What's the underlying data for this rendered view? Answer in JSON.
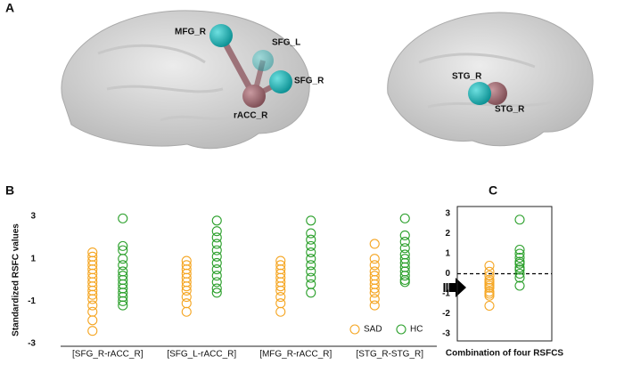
{
  "panels": [
    "A",
    "B",
    "C"
  ],
  "brain_left": {
    "nodes": [
      "MFG_R",
      "SFG_L",
      "SFG_R",
      "rACC_R"
    ]
  },
  "brain_right": {
    "nodes": [
      "STG_R",
      "STG_R"
    ]
  },
  "chart_data": [
    {
      "type": "strip",
      "y_label": "Standardized RSFC values",
      "categories": [
        "[SFG_R-rACC_R]",
        "[SFG_L-rACC_R]",
        "[MFG_R-rACC_R]",
        "[STG_R-STG_R]"
      ],
      "ylim": [
        -3,
        3
      ],
      "yticks": [
        -3,
        -1,
        1,
        3
      ],
      "legend": "lower right",
      "series": [
        {
          "name": "SAD",
          "color": "#f5a623",
          "values": [
            [
              1.3,
              1.1,
              0.9,
              0.7,
              0.5,
              0.3,
              0.1,
              -0.1,
              -0.3,
              -0.5,
              -0.7,
              -0.9,
              -1.2,
              -1.5,
              -1.9,
              -2.4
            ],
            [
              0.9,
              0.7,
              0.5,
              0.3,
              0.1,
              -0.1,
              -0.3,
              -0.5,
              -0.8,
              -1.1,
              -1.5
            ],
            [
              0.9,
              0.7,
              0.5,
              0.3,
              0.1,
              -0.1,
              -0.3,
              -0.5,
              -0.8,
              -1.1,
              -1.5
            ],
            [
              1.7,
              1.0,
              0.7,
              0.4,
              0.2,
              0,
              -0.2,
              -0.4,
              -0.6,
              -0.9,
              -1.2
            ]
          ]
        },
        {
          "name": "HC",
          "color": "#2ca02c",
          "values": [
            [
              2.9,
              1.6,
              1.4,
              1.0,
              0.7,
              0.4,
              0.2,
              0,
              -0.2,
              -0.4,
              -0.6,
              -0.8,
              -1.0,
              -1.2
            ],
            [
              2.8,
              2.3,
              2.0,
              1.7,
              1.4,
              1.1,
              0.8,
              0.5,
              0.2,
              -0.1,
              -0.4,
              -0.6
            ],
            [
              2.8,
              2.2,
              1.9,
              1.6,
              1.3,
              1.0,
              0.7,
              0.4,
              0.1,
              -0.2,
              -0.6
            ],
            [
              2.9,
              2.1,
              1.8,
              1.5,
              1.2,
              1.0,
              0.8,
              0.6,
              0.4,
              0.2,
              0,
              -0.1
            ]
          ]
        }
      ]
    },
    {
      "type": "strip",
      "x_label": "Combination of four RSFCS",
      "ylim": [
        -3,
        3
      ],
      "yticks": [
        -3,
        -2,
        -1,
        0,
        1,
        2,
        3
      ],
      "reference_line": 0,
      "series": [
        {
          "name": "SAD",
          "color": "#f5a623",
          "values": [
            0.4,
            0.1,
            -0.1,
            -0.3,
            -0.4,
            -0.5,
            -0.6,
            -0.7,
            -0.9,
            -1.0,
            -1.1,
            -1.6
          ]
        },
        {
          "name": "HC",
          "color": "#2ca02c",
          "values": [
            2.7,
            1.2,
            1.0,
            0.8,
            0.6,
            0.5,
            0.3,
            0.2,
            0,
            -0.2,
            -0.6
          ]
        }
      ]
    }
  ]
}
